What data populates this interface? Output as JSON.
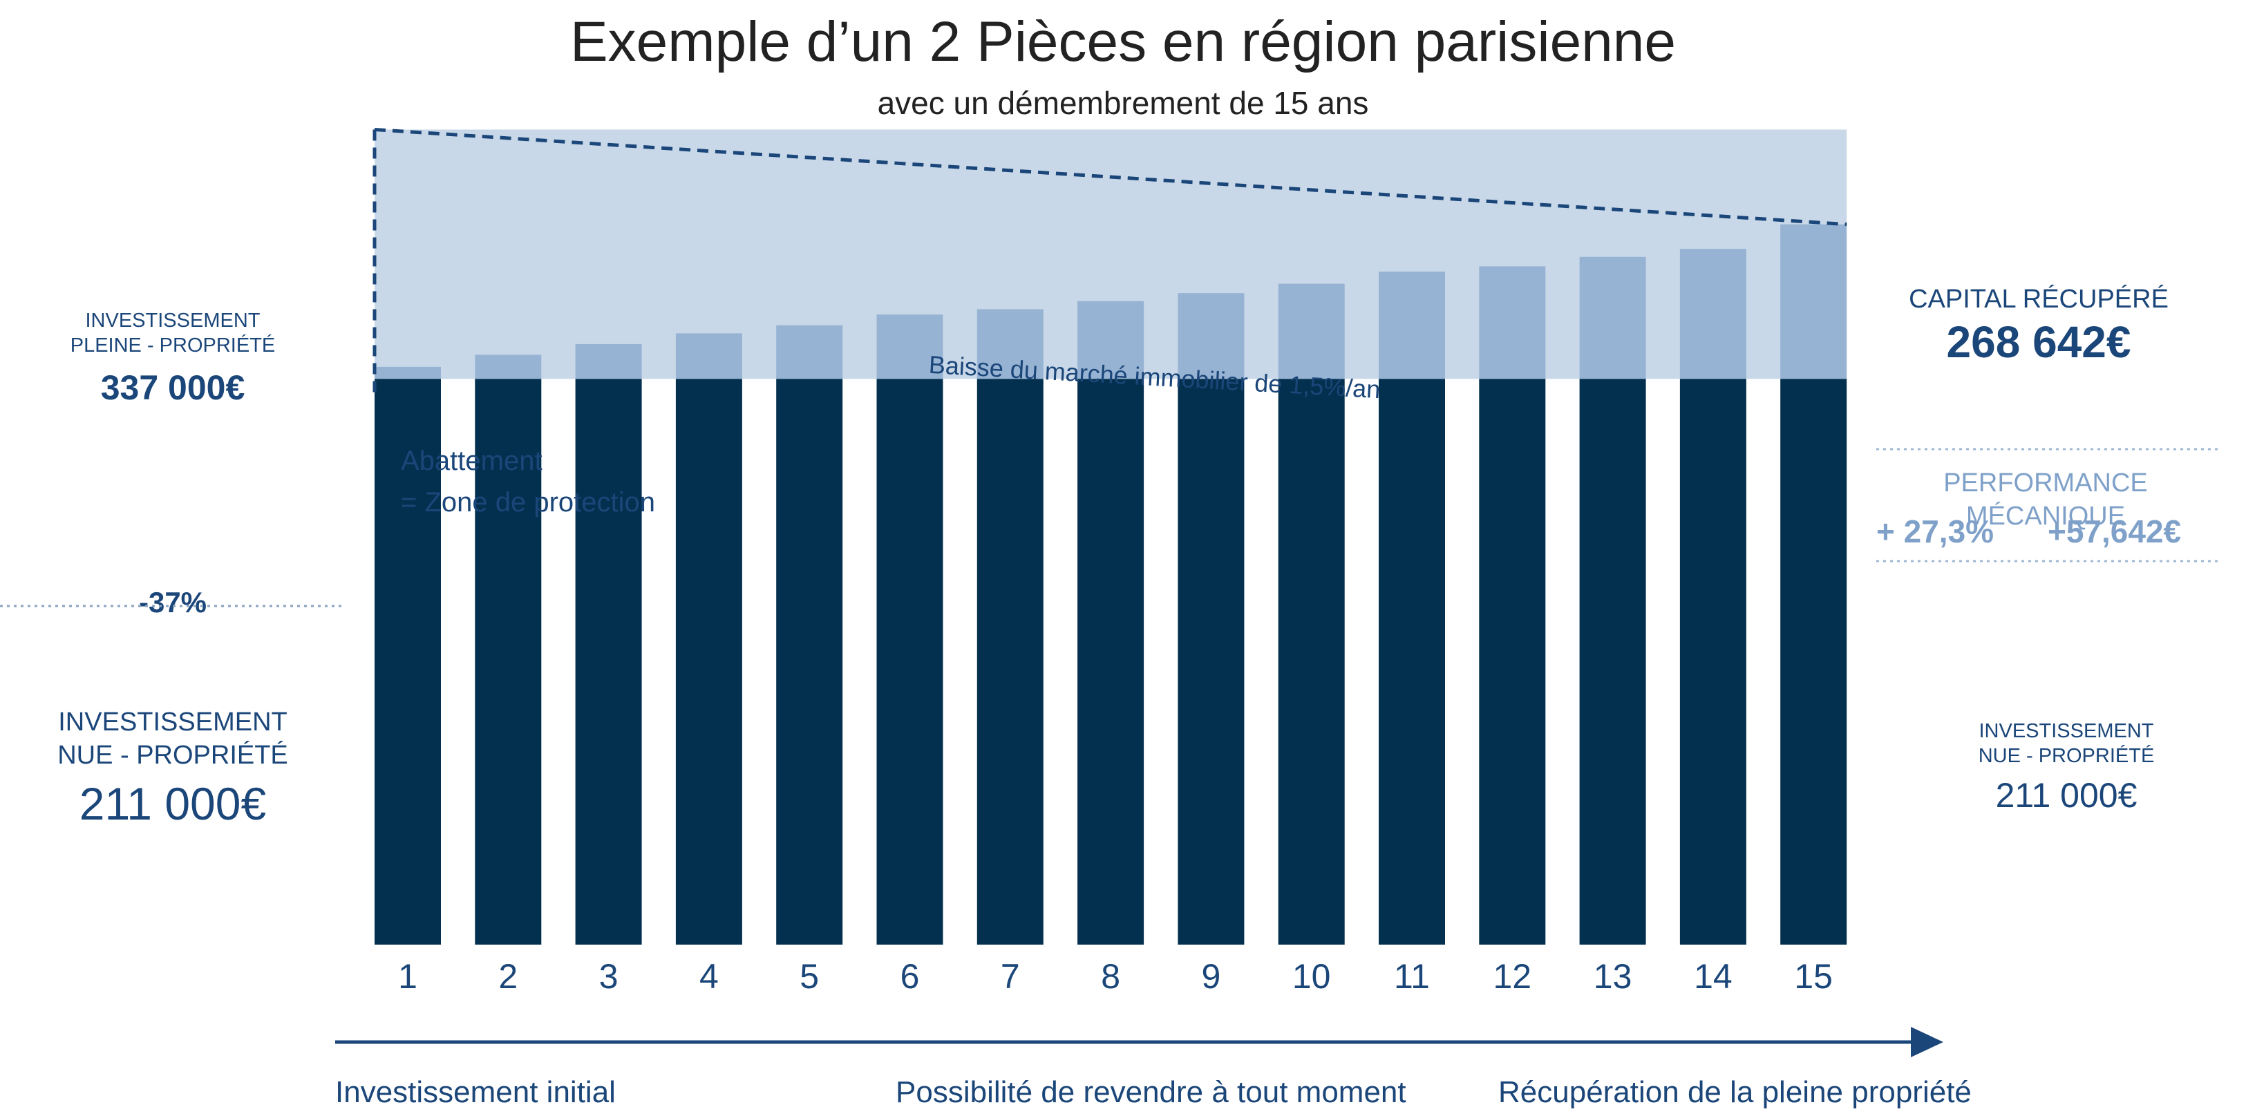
{
  "title": "Exemple d’un 2 Pièces en région parisienne",
  "subtitle": "avec un démembrement de 15 ans",
  "left": {
    "pleine_line1": "INVESTISSEMENT",
    "pleine_line2": "PLEINE - PROPRIÉTÉ",
    "pleine_value": "337 000€",
    "percent": "-37%",
    "nue_line1": "INVESTISSEMENT",
    "nue_line2": "NUE - PROPRIÉTÉ",
    "nue_value": "211 000€"
  },
  "right": {
    "capital_label": "CAPITAL RÉCUPÉRÉ",
    "capital_value": "268 642€",
    "performance_label": "PERFORMANCE MÉCANIQUE",
    "performance_pct": "+ 27,3%",
    "performance_value": "+57,642€",
    "nue_line1": "INVESTISSEMENT",
    "nue_line2": "NUE - PROPRIÉTÉ",
    "nue_value": "211 000€"
  },
  "annotations": {
    "market_decline": "Baisse du marché immobilier de 1,5%/an",
    "abatement_line1": "Abattement",
    "abatement_line2": "= Zone de protection"
  },
  "timeline": {
    "start": "Investissement initial",
    "middle": "Possibilité de revendre à tout moment",
    "end": "Récupération de la pleine propriété"
  },
  "colors": {
    "navy": "#03304f",
    "light_bar": "#97b3d4",
    "band": "#c8d8e8",
    "text_blue": "#1b4679",
    "perf_blue": "#7fa1c9"
  },
  "chart_data": {
    "type": "bar",
    "categories": [
      "1",
      "2",
      "3",
      "4",
      "5",
      "6",
      "7",
      "8",
      "9",
      "10",
      "11",
      "12",
      "13",
      "14",
      "15"
    ],
    "series": [
      {
        "values": [
          211000,
          211000,
          211000,
          211000,
          211000,
          211000,
          211000,
          211000,
          211000,
          211000,
          211000,
          211000,
          211000,
          211000,
          211000
        ]
      },
      {
        "values": [
          215500,
          220000,
          224000,
          228000,
          231000,
          235000,
          237000,
          240000,
          243000,
          246500,
          251000,
          253000,
          256500,
          259500,
          268642
        ]
      }
    ],
    "band": {
      "top": 304000,
      "bottom": 211000
    },
    "trend_line": {
      "start": 304000,
      "end": 268642
    },
    "ylim": [
      0,
      330000
    ]
  }
}
